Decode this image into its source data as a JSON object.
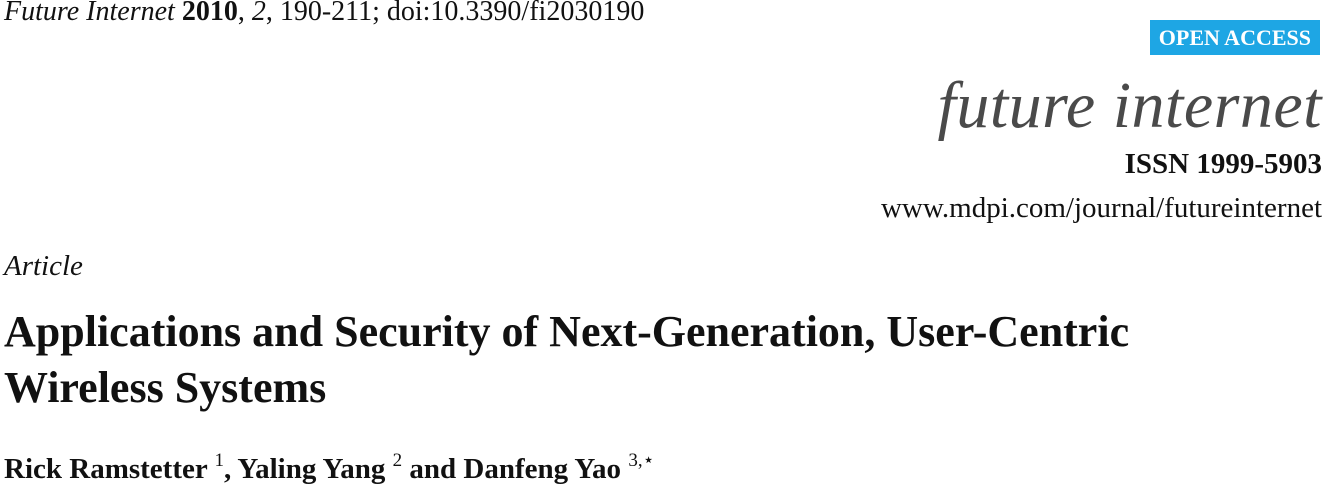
{
  "header": {
    "journal_name": "Future Internet",
    "year": "2010",
    "volume": "2",
    "pages_doi": ", 190-211; doi:10.3390/fi2030190",
    "open_access_label": "OPEN ACCESS",
    "journal_logo_text": "future internet",
    "issn": "ISSN 1999-5903",
    "url": "www.mdpi.com/journal/futureinternet"
  },
  "article": {
    "type": "Article",
    "title_line1": "Applications and Security of Next-Generation, User-Centric",
    "title_line2": "Wireless Systems",
    "authors": [
      {
        "name": "Rick Ramstetter",
        "affiliation": "1",
        "separator": ", "
      },
      {
        "name": "Yaling Yang",
        "affiliation": "2",
        "separator": " and "
      },
      {
        "name": "Danfeng Yao",
        "affiliation": "3,⋆",
        "separator": ""
      }
    ]
  }
}
